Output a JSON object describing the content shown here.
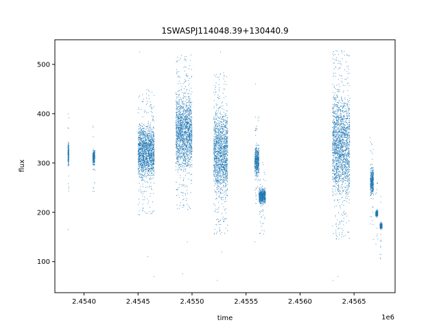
{
  "chart_data": {
    "type": "scatter",
    "title": "1SWASPJ114048.39+130440.9",
    "xlabel": "time",
    "ylabel": "flux",
    "x_offset_label": "1e6",
    "xlim": [
      2453730,
      2456880
    ],
    "ylim": [
      37,
      550
    ],
    "x_ticks": [
      2454000,
      2454500,
      2455000,
      2455500,
      2456000,
      2456500
    ],
    "x_tick_labels": [
      "2.4540",
      "2.4545",
      "2.4550",
      "2.4555",
      "2.4560",
      "2.4565"
    ],
    "y_ticks": [
      100,
      200,
      300,
      400,
      500
    ],
    "y_tick_labels": [
      "100",
      "200",
      "300",
      "400",
      "500"
    ],
    "grid": false,
    "marker_color": "#1f77b4",
    "clusters": [
      {
        "x": [
          2453850,
          2453860
        ],
        "y_range": [
          290,
          345
        ],
        "outliers": [
          165
        ]
      },
      {
        "x": [
          2454080,
          2454100
        ],
        "y_range": [
          295,
          330
        ],
        "outliers": []
      },
      {
        "x": [
          2454500,
          2454650
        ],
        "y_range": [
          255,
          390
        ],
        "outliers": [
          70,
          110,
          525
        ]
      },
      {
        "x": [
          2454850,
          2455000
        ],
        "y_range": [
          265,
          460
        ],
        "outliers": [
          75,
          140,
          510
        ]
      },
      {
        "x": [
          2455200,
          2455330
        ],
        "y_range": [
          215,
          430
        ],
        "outliers": [
          62,
          120,
          525
        ]
      },
      {
        "x": [
          2455580,
          2455620
        ],
        "y_range": [
          270,
          340
        ],
        "outliers": [
          140,
          460
        ]
      },
      {
        "x": [
          2455620,
          2455680
        ],
        "y_range": [
          215,
          250
        ],
        "outliers": []
      },
      {
        "x": [
          2456300,
          2456460
        ],
        "y_range": [
          200,
          470
        ],
        "outliers": [
          62,
          70,
          520
        ]
      },
      {
        "x": [
          2456650,
          2456680
        ],
        "y_range": [
          230,
          295
        ],
        "outliers": [
          145
        ]
      },
      {
        "x": [
          2456700,
          2456720
        ],
        "y_range": [
          190,
          205
        ],
        "outliers": []
      },
      {
        "x": [
          2456740,
          2456760
        ],
        "y_range": [
          165,
          180
        ],
        "outliers": []
      }
    ]
  }
}
